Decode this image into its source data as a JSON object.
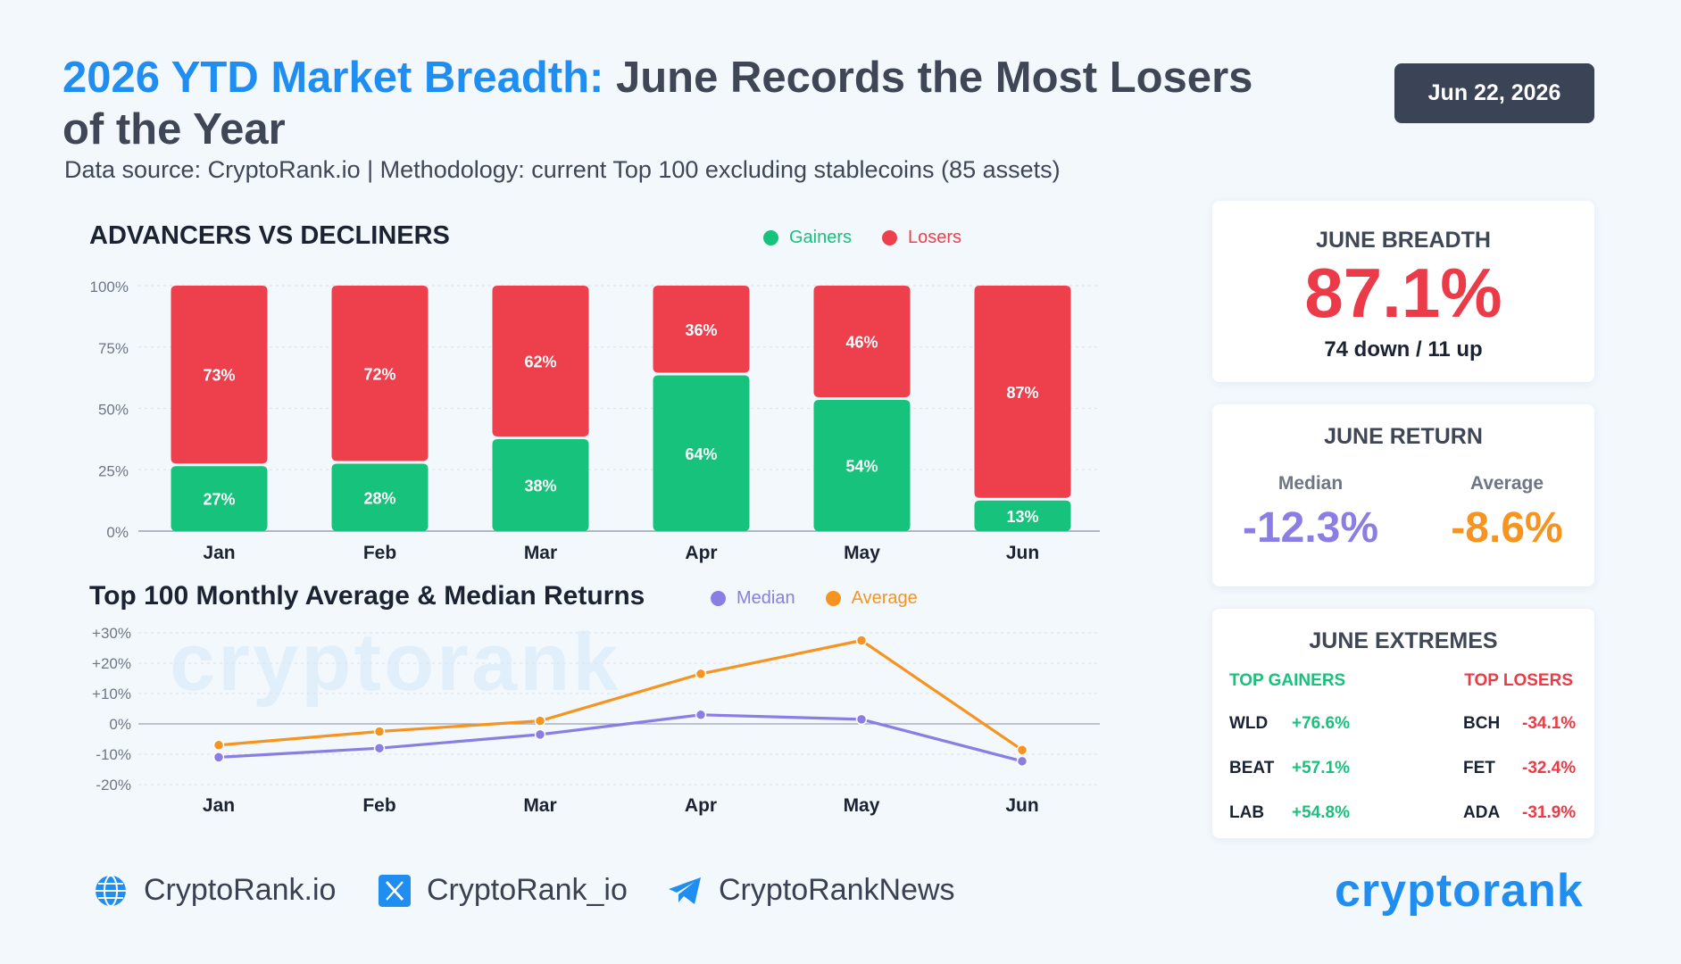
{
  "header": {
    "title_highlight": "2026 YTD Market Breadth:",
    "title_rest": " June Records the Most Losers of the Year",
    "subtitle": "Data source: CryptoRank.io | Methodology: current Top 100 excluding stablecoins (85 assets)",
    "date": "Jun 22, 2026"
  },
  "chart_data": [
    {
      "type": "bar",
      "stacked": true,
      "title": "ADVANCERS VS DECLINERS",
      "categories": [
        "Jan",
        "Feb",
        "Mar",
        "Apr",
        "May",
        "Jun"
      ],
      "series": [
        {
          "name": "Gainers",
          "color": "#17c27c",
          "values": [
            27,
            28,
            38,
            64,
            54,
            13
          ]
        },
        {
          "name": "Losers",
          "color": "#ee3f4c",
          "values": [
            73,
            72,
            62,
            36,
            46,
            87
          ]
        }
      ],
      "y_ticks": [
        "100%",
        "75%",
        "50%",
        "25%",
        "0%"
      ],
      "ylim": [
        0,
        100
      ],
      "legend": "top-right",
      "grid": true
    },
    {
      "type": "line",
      "title": "Top 100 Monthly Average & Median Returns",
      "categories": [
        "Jan",
        "Feb",
        "Mar",
        "Apr",
        "May",
        "Jun"
      ],
      "series": [
        {
          "name": "Median",
          "color": "#8a7de3",
          "values": [
            -11,
            -8,
            -3.5,
            3,
            1.5,
            -12.3
          ]
        },
        {
          "name": "Average",
          "color": "#f59421",
          "values": [
            -7,
            -2.5,
            1,
            16.5,
            27.5,
            -8.6
          ]
        }
      ],
      "y_ticks": [
        "+30%",
        "+20%",
        "+10%",
        "0%",
        "-10%",
        "-20%"
      ],
      "ylim": [
        -20,
        30
      ],
      "legend": "top-right",
      "grid": true
    }
  ],
  "cards": {
    "breadth": {
      "title": "JUNE BREADTH",
      "value": "87.1%",
      "sub": "74 down / 11 up"
    },
    "returns": {
      "title": "JUNE RETURN",
      "median_label": "Median",
      "median_value": "-12.3%",
      "average_label": "Average",
      "average_value": "-8.6%"
    },
    "extremes": {
      "title": "JUNE EXTREMES",
      "gainers_label": "TOP GAINERS",
      "losers_label": "TOP LOSERS",
      "gainers": [
        {
          "symbol": "WLD",
          "change": "+76.6%"
        },
        {
          "symbol": "BEAT",
          "change": "+57.1%"
        },
        {
          "symbol": "LAB",
          "change": "+54.8%"
        }
      ],
      "losers": [
        {
          "symbol": "BCH",
          "change": "-34.1%"
        },
        {
          "symbol": "FET",
          "change": "-32.4%"
        },
        {
          "symbol": "ADA",
          "change": "-31.9%"
        }
      ]
    }
  },
  "footer": {
    "website": "CryptoRank.io",
    "x_handle": "CryptoRank_io",
    "telegram": "CryptoRankNews",
    "logo": "cryptorank"
  },
  "watermark": "cryptorank",
  "colors": {
    "accent": "#1f8ef0",
    "gainers": "#17c27c",
    "losers": "#ee3f4c",
    "median": "#8a7de3",
    "average": "#f59421"
  },
  "icons": [
    "globe-icon",
    "x-logo-icon",
    "telegram-icon"
  ]
}
